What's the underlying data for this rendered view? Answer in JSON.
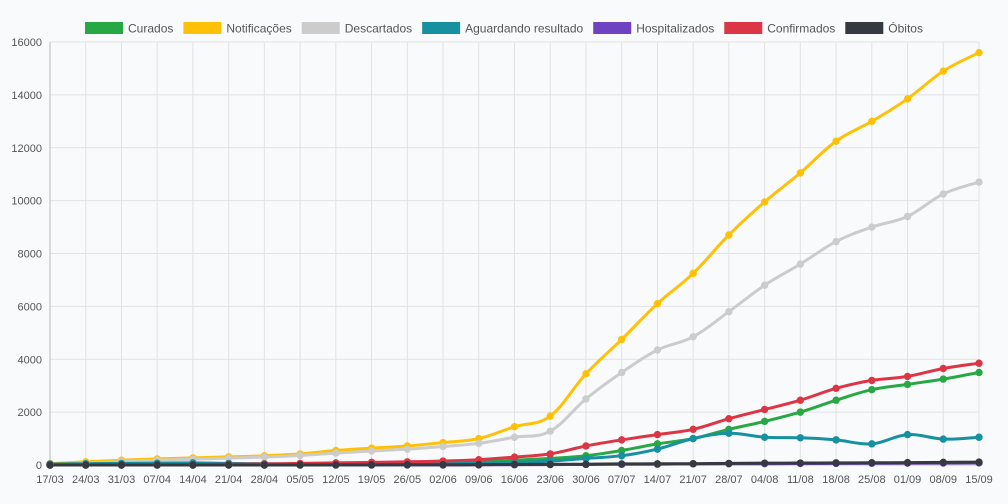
{
  "chart_data": {
    "type": "line",
    "title": "",
    "xlabel": "",
    "ylabel": "",
    "ylim": [
      0,
      16000
    ],
    "yticks": [
      0,
      2000,
      4000,
      6000,
      8000,
      10000,
      12000,
      14000,
      16000
    ],
    "grid": true,
    "legend_position": "top",
    "categories": [
      "17/03",
      "24/03",
      "31/03",
      "07/04",
      "14/04",
      "21/04",
      "28/04",
      "05/05",
      "12/05",
      "19/05",
      "26/05",
      "02/06",
      "09/06",
      "16/06",
      "23/06",
      "30/06",
      "07/07",
      "14/07",
      "21/07",
      "28/07",
      "04/08",
      "11/08",
      "18/08",
      "25/08",
      "01/09",
      "08/09",
      "15/09"
    ],
    "series": [
      {
        "name": "Curados",
        "color": "#28a745",
        "values": [
          0,
          0,
          0,
          0,
          0,
          10,
          20,
          30,
          50,
          60,
          70,
          100,
          120,
          180,
          250,
          350,
          550,
          800,
          1000,
          1350,
          1650,
          2000,
          2450,
          2850,
          3050,
          3250,
          3500
        ]
      },
      {
        "name": "Notificações",
        "color": "#ffc107",
        "values": [
          50,
          120,
          180,
          230,
          270,
          310,
          350,
          420,
          550,
          640,
          720,
          850,
          1000,
          1450,
          1850,
          3450,
          4750,
          6100,
          7250,
          8700,
          9950,
          11050,
          12250,
          13000,
          13850,
          14900,
          15600
        ]
      },
      {
        "name": "Descartados",
        "color": "#cccccc",
        "values": [
          10,
          60,
          120,
          180,
          220,
          260,
          300,
          360,
          450,
          530,
          600,
          700,
          820,
          1050,
          1280,
          2500,
          3500,
          4350,
          4850,
          5800,
          6800,
          7600,
          8450,
          9000,
          9400,
          10250,
          10700
        ]
      },
      {
        "name": "Aguardando resultado",
        "color": "#17909f",
        "values": [
          40,
          50,
          60,
          70,
          80,
          60,
          50,
          40,
          40,
          50,
          60,
          60,
          70,
          100,
          150,
          250,
          350,
          600,
          1000,
          1200,
          1050,
          1030,
          950,
          800,
          1150,
          980,
          1050
        ]
      },
      {
        "name": "Hospitalizados",
        "color": "#6f42c1",
        "values": [
          0,
          0,
          0,
          0,
          0,
          0,
          0,
          0,
          0,
          0,
          0,
          0,
          5,
          10,
          15,
          20,
          25,
          30,
          40,
          45,
          50,
          55,
          60,
          65,
          70,
          75,
          80
        ]
      },
      {
        "name": "Confirmados",
        "color": "#dc3545",
        "values": [
          0,
          5,
          10,
          15,
          20,
          30,
          40,
          60,
          80,
          100,
          120,
          150,
          200,
          300,
          420,
          720,
          950,
          1150,
          1350,
          1750,
          2100,
          2450,
          2900,
          3200,
          3350,
          3650,
          3850
        ]
      },
      {
        "name": "Óbitos",
        "color": "#343a40",
        "values": [
          0,
          0,
          0,
          0,
          0,
          0,
          0,
          0,
          5,
          5,
          10,
          10,
          15,
          20,
          25,
          30,
          40,
          45,
          50,
          60,
          70,
          75,
          80,
          85,
          90,
          100,
          110
        ]
      }
    ]
  }
}
